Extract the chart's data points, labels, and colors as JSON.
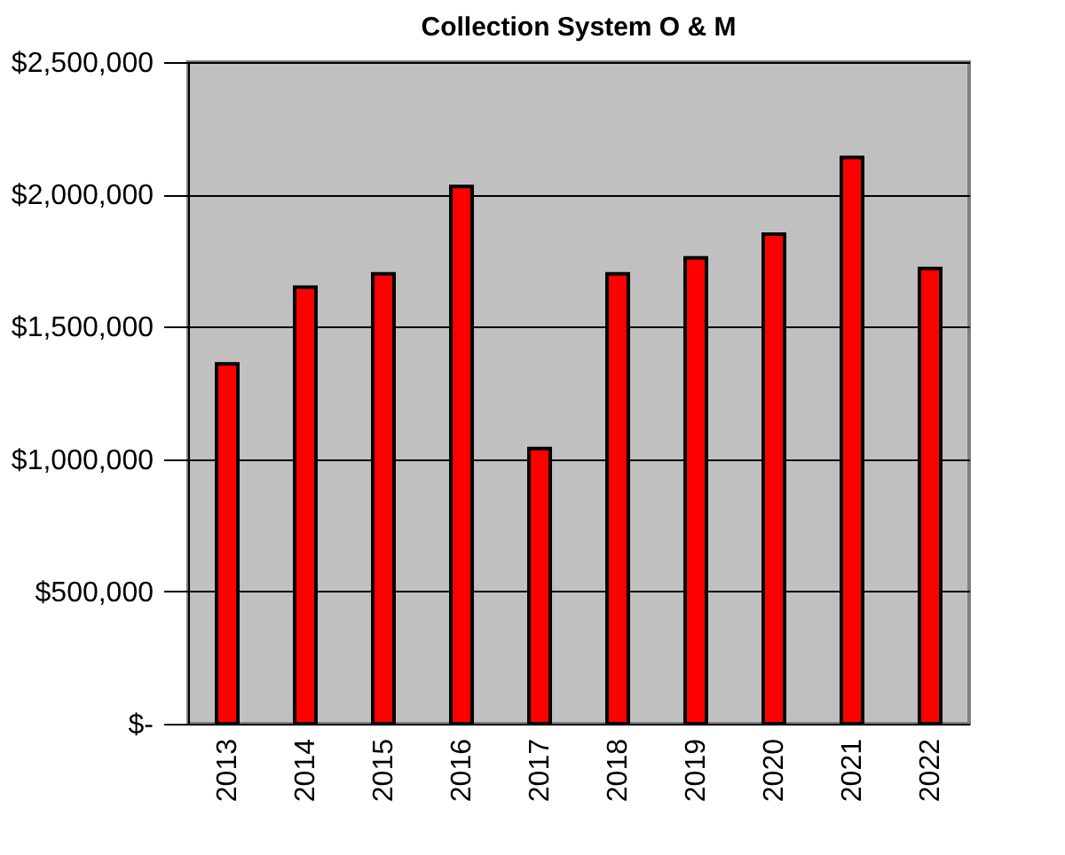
{
  "chart_data": {
    "type": "bar",
    "title": "Collection System  O & M",
    "categories": [
      "2013",
      "2014",
      "2015",
      "2016",
      "2017",
      "2018",
      "2019",
      "2020",
      "2021",
      "2022"
    ],
    "values": [
      1360000,
      1650000,
      1700000,
      2030000,
      1040000,
      1700000,
      1760000,
      1850000,
      2140000,
      1720000
    ],
    "color": "#ff0000",
    "ylim": [
      0,
      2500000
    ],
    "yticks": [
      {
        "value": 0,
        "label": "$-"
      },
      {
        "value": 500000,
        "label": "$500,000"
      },
      {
        "value": 1000000,
        "label": "$1,000,000"
      },
      {
        "value": 1500000,
        "label": "$1,500,000"
      },
      {
        "value": 2000000,
        "label": "$2,000,000"
      },
      {
        "value": 2500000,
        "label": "$2,500,000"
      }
    ],
    "grid": "y"
  }
}
